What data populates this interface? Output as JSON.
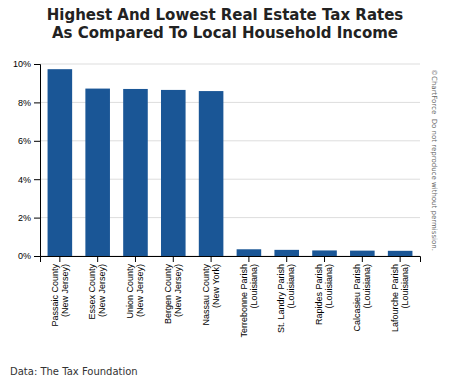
{
  "chart_data": {
    "type": "bar",
    "title": "Highest And Lowest Real Estate Tax Rates\nAs Compared To Local Household Income",
    "categories": [
      "Passaic County\n(New Jersey)",
      "Essex County\n(New Jersey)",
      "Union County\n(New Jersey)",
      "Bergen County\n(New Jersey)",
      "Nassau County\n(New York)",
      "Terrebonne Parish\n(Louisiana)",
      "St. Landry Parish\n(Louisiana)",
      "Rapides Parish\n(Louisiana)",
      "Calcasieu Parish\n(Louisiana)",
      "Lafourche Parish\n(Louisiana)"
    ],
    "values": [
      9.73,
      8.72,
      8.7,
      8.65,
      8.59,
      0.35,
      0.32,
      0.29,
      0.28,
      0.27
    ],
    "color": "#1a5696",
    "ylim": [
      0,
      10
    ],
    "yticks": [
      {
        "value": 0,
        "label": "0%"
      },
      {
        "value": 2,
        "label": "2%"
      },
      {
        "value": 4,
        "label": "4%"
      },
      {
        "value": 6,
        "label": "6%"
      },
      {
        "value": 8,
        "label": "8%"
      },
      {
        "value": 10,
        "label": "10%"
      }
    ],
    "grid": true,
    "annotations": [
      "Data: The Tax Foundation",
      "©ChartForce  Do not reproduce without permission."
    ]
  }
}
